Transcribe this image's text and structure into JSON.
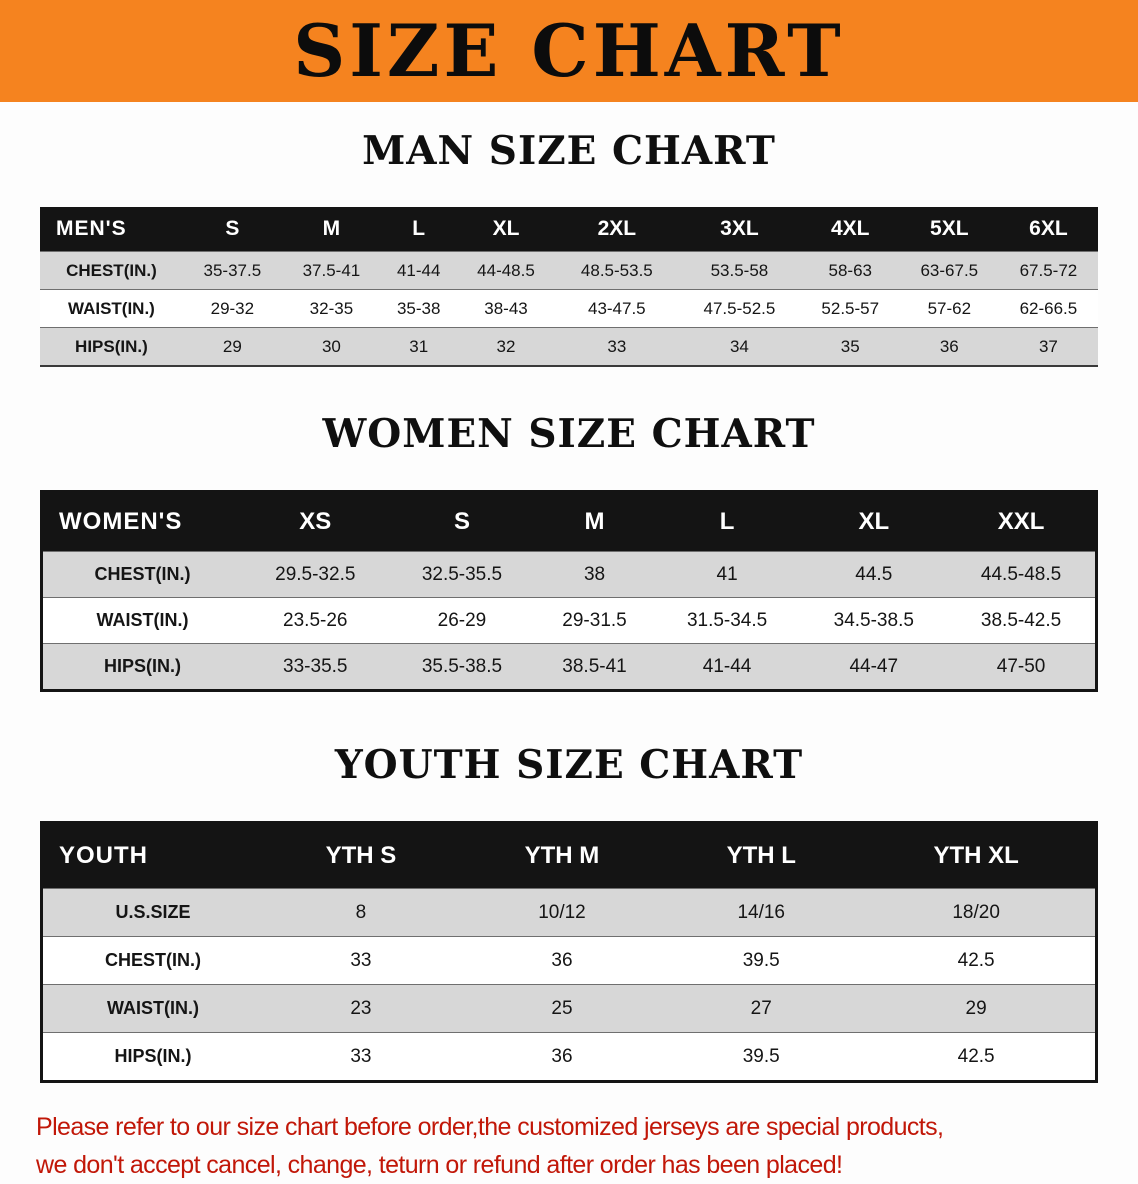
{
  "banner": {
    "title": "SIZE CHART"
  },
  "colors": {
    "banner_bg": "#f5831f",
    "table_header_bg": "#141414",
    "row_shade": "#d7d7d7",
    "footer_text": "#c11708"
  },
  "men": {
    "heading": "MAN SIZE CHART",
    "corner": "MEN'S",
    "sizes": [
      "S",
      "M",
      "L",
      "XL",
      "2XL",
      "3XL",
      "4XL",
      "5XL",
      "6XL"
    ],
    "rows": [
      {
        "label": "CHEST(IN.)",
        "values": [
          "35-37.5",
          "37.5-41",
          "41-44",
          "44-48.5",
          "48.5-53.5",
          "53.5-58",
          "58-63",
          "63-67.5",
          "67.5-72"
        ]
      },
      {
        "label": "WAIST(IN.)",
        "values": [
          "29-32",
          "32-35",
          "35-38",
          "38-43",
          "43-47.5",
          "47.5-52.5",
          "52.5-57",
          "57-62",
          "62-66.5"
        ]
      },
      {
        "label": "HIPS(IN.)",
        "values": [
          "29",
          "30",
          "31",
          "32",
          "33",
          "34",
          "35",
          "36",
          "37"
        ]
      }
    ]
  },
  "women": {
    "heading": "WOMEN SIZE CHART",
    "corner": "WOMEN'S",
    "sizes": [
      "XS",
      "S",
      "M",
      "L",
      "XL",
      "XXL"
    ],
    "rows": [
      {
        "label": "CHEST(IN.)",
        "values": [
          "29.5-32.5",
          "32.5-35.5",
          "38",
          "41",
          "44.5",
          "44.5-48.5"
        ]
      },
      {
        "label": "WAIST(IN.)",
        "values": [
          "23.5-26",
          "26-29",
          "29-31.5",
          "31.5-34.5",
          "34.5-38.5",
          "38.5-42.5"
        ]
      },
      {
        "label": "HIPS(IN.)",
        "values": [
          "33-35.5",
          "35.5-38.5",
          "38.5-41",
          "41-44",
          "44-47",
          "47-50"
        ]
      }
    ]
  },
  "youth": {
    "heading": "YOUTH SIZE CHART",
    "corner": "YOUTH",
    "sizes": [
      "YTH S",
      "YTH M",
      "YTH L",
      "YTH XL"
    ],
    "rows": [
      {
        "label": "U.S.SIZE",
        "values": [
          "8",
          "10/12",
          "14/16",
          "18/20"
        ]
      },
      {
        "label": "CHEST(IN.)",
        "values": [
          "33",
          "36",
          "39.5",
          "42.5"
        ]
      },
      {
        "label": "WAIST(IN.)",
        "values": [
          "23",
          "25",
          "27",
          "29"
        ]
      },
      {
        "label": "HIPS(IN.)",
        "values": [
          "33",
          "36",
          "39.5",
          "42.5"
        ]
      }
    ]
  },
  "footer": {
    "line1": "Please refer to our size chart before order,the customized jerseys are special products,",
    "line2": "we don't accept cancel, change, teturn or refund after order has been placed!"
  }
}
